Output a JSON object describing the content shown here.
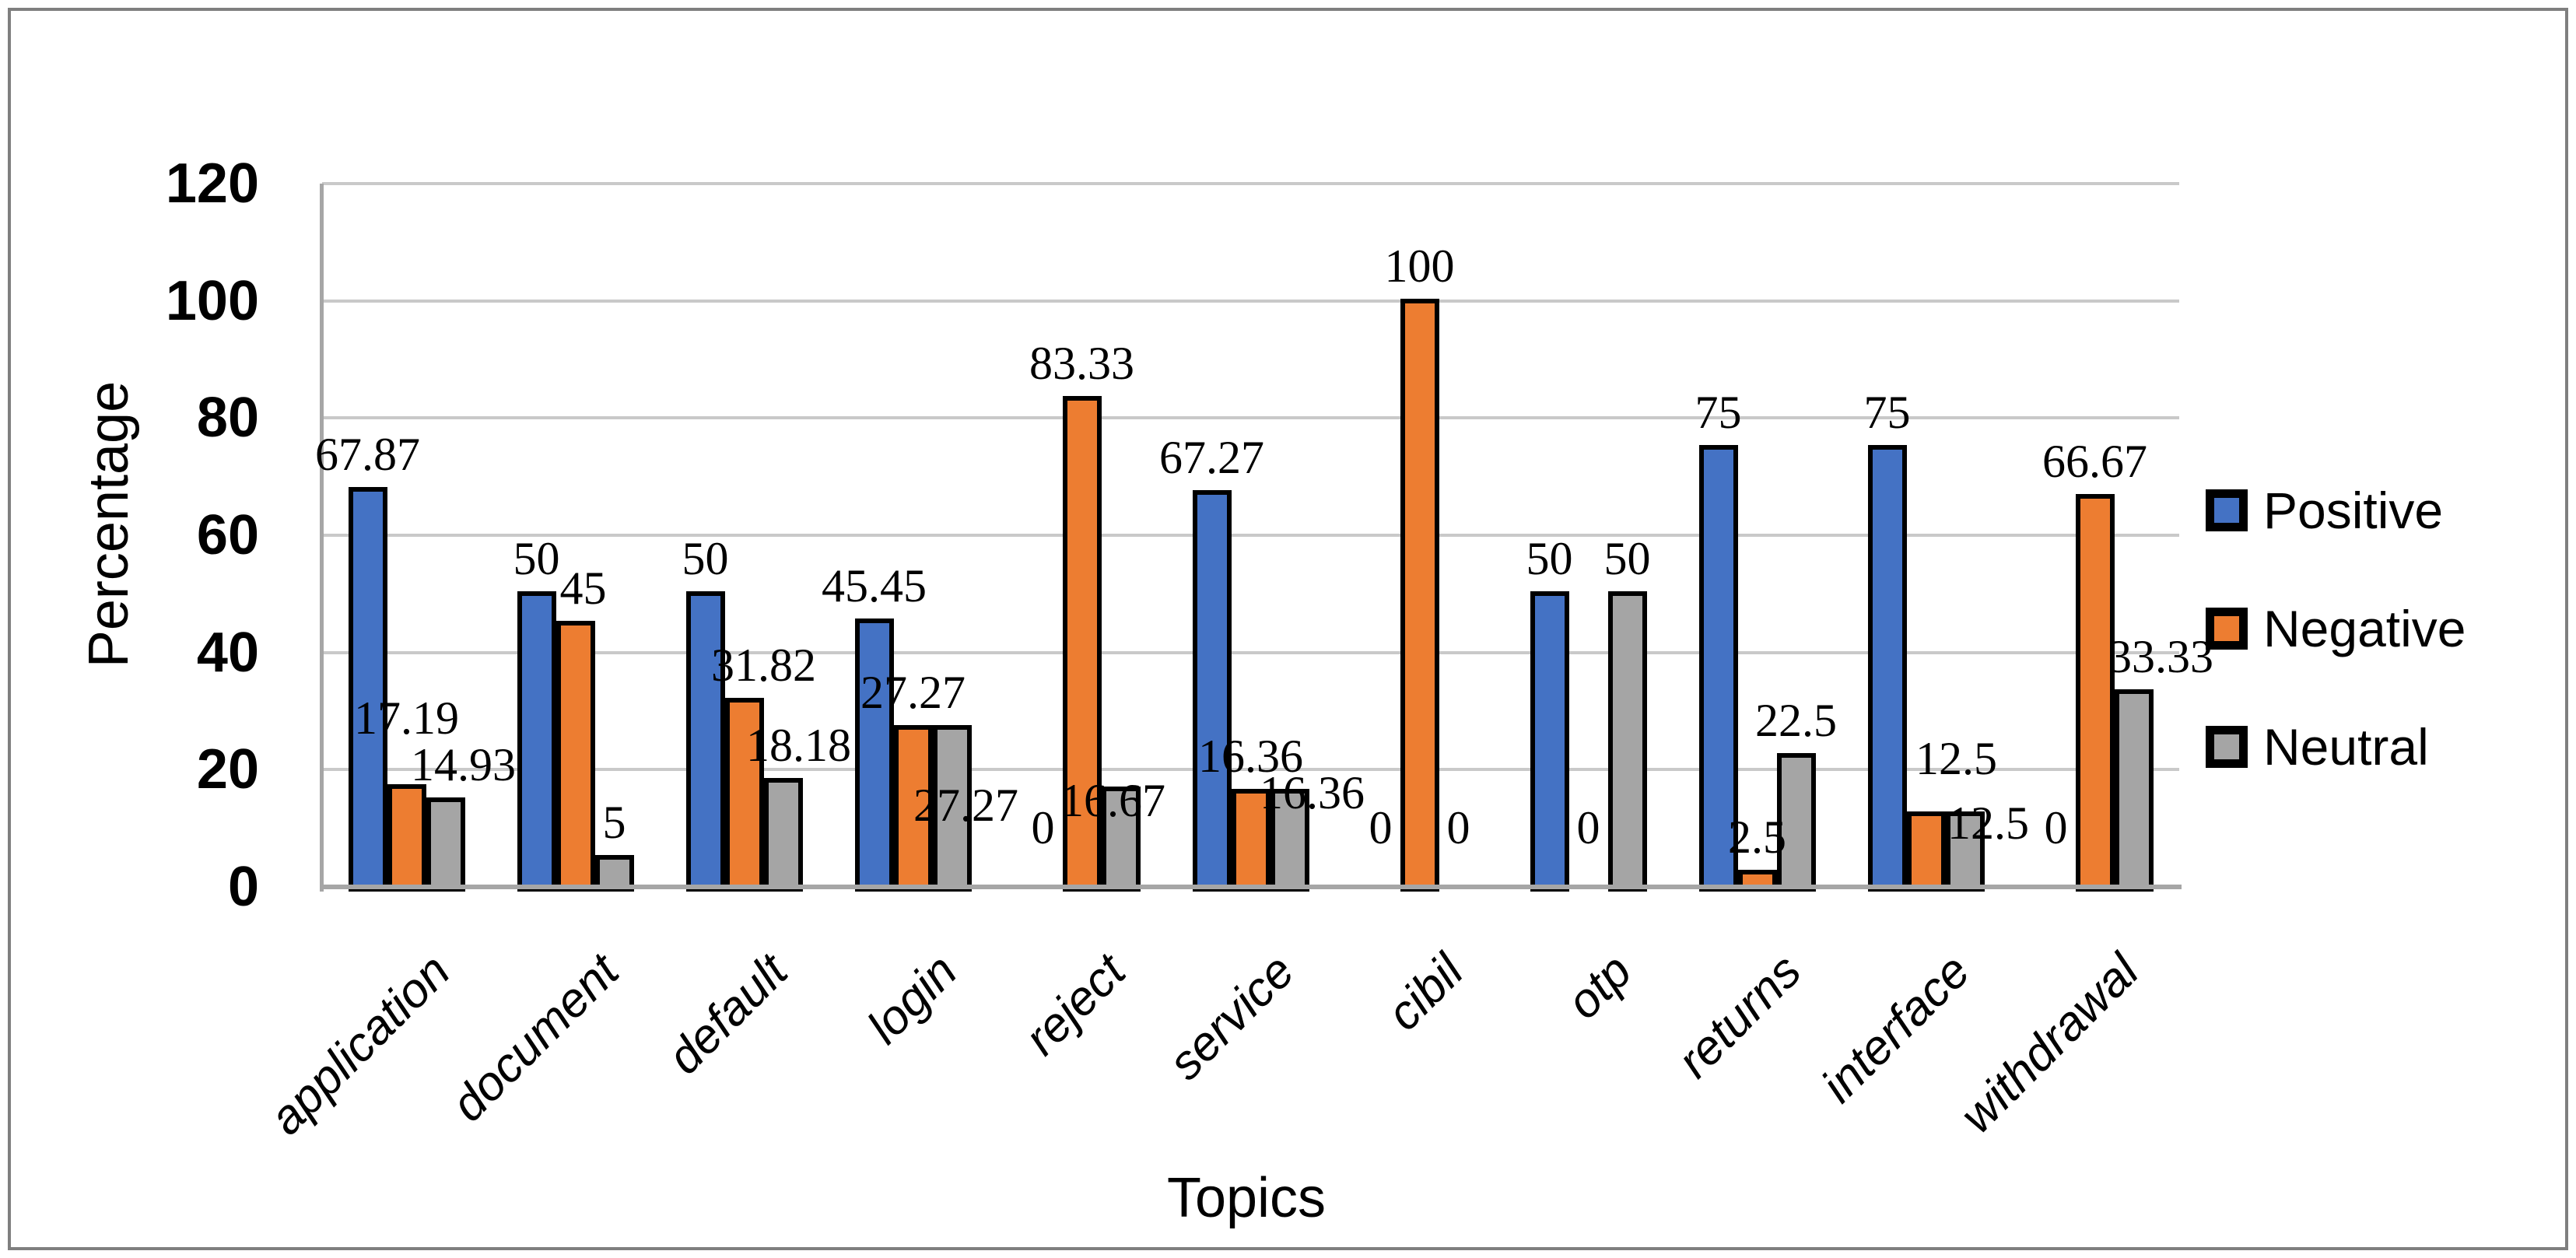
{
  "chart_data": {
    "type": "bar",
    "title": "",
    "categories": [
      "application",
      "document",
      "default",
      "login",
      "reject",
      "service",
      "cibil",
      "otp",
      "returns",
      "interface",
      "withdrawal"
    ],
    "series": [
      {
        "name": "Positive",
        "color": "#4472C4",
        "values": [
          67.87,
          50,
          50,
          45.45,
          0,
          67.27,
          0,
          50,
          75,
          75,
          0
        ]
      },
      {
        "name": "Negative",
        "color": "#ED7D31",
        "values": [
          17.19,
          45,
          31.82,
          27.27,
          83.33,
          16.36,
          100,
          0,
          2.5,
          12.5,
          66.67
        ]
      },
      {
        "name": "Neutral",
        "color": "#A5A5A5",
        "values": [
          14.93,
          5,
          18.18,
          27.27,
          16.67,
          16.36,
          0,
          50,
          22.5,
          12.5,
          33.33
        ]
      }
    ],
    "xlabel": "Topics",
    "ylabel": "Percentage",
    "ylim": [
      0,
      120
    ],
    "yticks": [
      0,
      20,
      40,
      60,
      80,
      100,
      120
    ],
    "grid": true,
    "legend_position": "right",
    "data_labels": true,
    "colors": {
      "axis": "#A6A6A6",
      "gridline": "#C9C9C9",
      "bar_border": "#000000",
      "frame_border": "#7F7F7F",
      "text": "#000000"
    }
  }
}
